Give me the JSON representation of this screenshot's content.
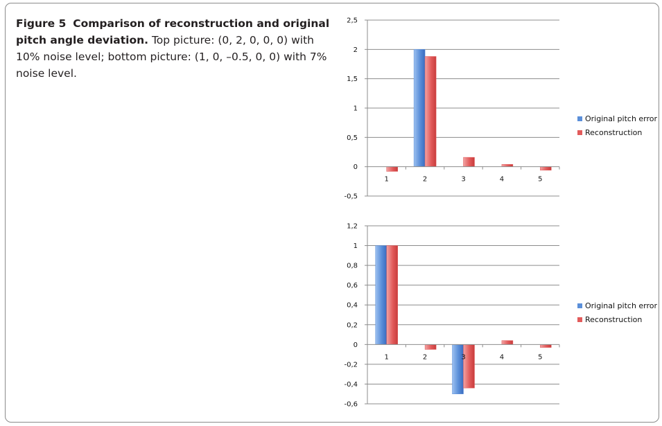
{
  "caption": {
    "label": "Figure 5",
    "title": "Comparison of reconstruction and original pitch angle deviation.",
    "text": "Top picture: (0, 2, 0, 0, 0) with 10% noise level; bottom picture: (1, 0, –0.5, 0, 0) with 7% noise level."
  },
  "colors": {
    "original": "#5b8fd9",
    "reconstruction": "#e25b5b"
  },
  "chart_data": [
    {
      "type": "bar",
      "categories": [
        "1",
        "2",
        "3",
        "4",
        "5"
      ],
      "series": [
        {
          "name": "Original pitch error",
          "values": [
            0,
            2,
            0,
            0,
            0
          ]
        },
        {
          "name": "Reconstruction",
          "values": [
            -0.08,
            1.88,
            0.16,
            0.04,
            -0.06
          ]
        }
      ],
      "ylim": [
        -0.5,
        2.5
      ],
      "yticks": [
        2.5,
        2,
        1.5,
        1,
        0.5,
        0,
        -0.5
      ],
      "ytick_labels": [
        "2,5",
        "2",
        "1,5",
        "1",
        "0,5",
        "0",
        "-0,5"
      ],
      "grid": true,
      "legend": "right"
    },
    {
      "type": "bar",
      "categories": [
        "1",
        "2",
        "3",
        "4",
        "5"
      ],
      "series": [
        {
          "name": "Original pitch error",
          "values": [
            1,
            0,
            -0.5,
            0,
            0
          ]
        },
        {
          "name": "Reconstruction",
          "values": [
            1.0,
            -0.05,
            -0.44,
            0.04,
            -0.03
          ]
        }
      ],
      "ylim": [
        -0.6,
        1.2
      ],
      "yticks": [
        1.2,
        1,
        0.8,
        0.6,
        0.4,
        0.2,
        0,
        -0.2,
        -0.4,
        -0.6
      ],
      "ytick_labels": [
        "1,2",
        "1",
        "0,8",
        "0,6",
        "0,4",
        "0,2",
        "0",
        "-0,2",
        "-0,4",
        "-0,6"
      ],
      "grid": true,
      "legend": "right"
    }
  ]
}
